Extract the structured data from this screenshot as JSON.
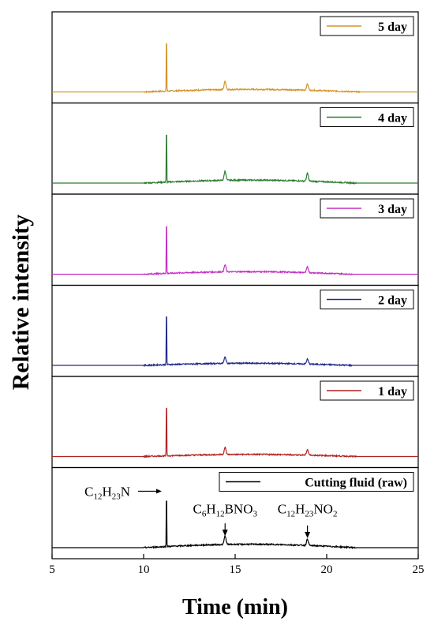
{
  "chart_data": {
    "type": "line",
    "xlabel": "Time (min)",
    "ylabel": "Relative intensity",
    "xlim": [
      5,
      25
    ],
    "x_ticks": [
      5,
      10,
      15,
      20,
      25
    ],
    "grid": false,
    "legend_placement": "top-right in each panel",
    "peaks_x": [
      11.25,
      14.45,
      18.95
    ],
    "series": [
      {
        "name": "5 day",
        "color": "#d4932a",
        "baseline_start": 10.0,
        "baseline_end": 21.8,
        "hump_height": 0.06,
        "peaks": [
          {
            "x": 11.25,
            "height": 0.95
          },
          {
            "x": 14.45,
            "height": 0.12
          },
          {
            "x": 18.95,
            "height": 0.09
          }
        ]
      },
      {
        "name": "4 day",
        "color": "#2e7d32",
        "baseline_start": 10.0,
        "baseline_end": 21.6,
        "hump_height": 0.07,
        "peaks": [
          {
            "x": 11.25,
            "height": 0.93
          },
          {
            "x": 14.45,
            "height": 0.13
          },
          {
            "x": 18.95,
            "height": 0.11
          }
        ]
      },
      {
        "name": "3 day",
        "color": "#c42fc4",
        "baseline_start": 10.0,
        "baseline_end": 21.4,
        "hump_height": 0.06,
        "peaks": [
          {
            "x": 11.25,
            "height": 0.93
          },
          {
            "x": 14.45,
            "height": 0.1
          },
          {
            "x": 18.95,
            "height": 0.08
          }
        ]
      },
      {
        "name": "2 day",
        "color": "#1f2a8a",
        "baseline_start": 10.0,
        "baseline_end": 21.4,
        "hump_height": 0.05,
        "peaks": [
          {
            "x": 11.25,
            "height": 0.95
          },
          {
            "x": 14.45,
            "height": 0.09
          },
          {
            "x": 18.95,
            "height": 0.07
          }
        ]
      },
      {
        "name": "1 day",
        "color": "#b22222",
        "baseline_start": 10.0,
        "baseline_end": 21.6,
        "hump_height": 0.05,
        "peaks": [
          {
            "x": 11.25,
            "height": 0.95
          },
          {
            "x": 14.45,
            "height": 0.1
          },
          {
            "x": 18.95,
            "height": 0.08
          }
        ]
      },
      {
        "name": "Cutting fluid (raw)",
        "color": "#000000",
        "baseline_start": 10.0,
        "baseline_end": 21.6,
        "hump_height": 0.08,
        "peaks": [
          {
            "x": 11.25,
            "height": 0.92
          },
          {
            "x": 14.45,
            "height": 0.12
          },
          {
            "x": 18.95,
            "height": 0.09
          }
        ]
      }
    ],
    "annotations": [
      {
        "label": "C12H23N",
        "parts": [
          [
            "C",
            ""
          ],
          [
            "12",
            "sub"
          ],
          [
            "H",
            ""
          ],
          [
            "23",
            "sub"
          ],
          [
            "N",
            ""
          ]
        ],
        "arrow": "right",
        "peak_x": 11.25
      },
      {
        "label": "C6H12BNO3",
        "parts": [
          [
            "C",
            ""
          ],
          [
            "6",
            "sub"
          ],
          [
            "H",
            ""
          ],
          [
            "12",
            "sub"
          ],
          [
            "BNO",
            ""
          ],
          [
            "3",
            "sub"
          ]
        ],
        "arrow": "down",
        "peak_x": 14.45
      },
      {
        "label": "C12H23NO2",
        "parts": [
          [
            "C",
            ""
          ],
          [
            "12",
            "sub"
          ],
          [
            "H",
            ""
          ],
          [
            "23",
            "sub"
          ],
          [
            "NO",
            ""
          ],
          [
            "2",
            "sub"
          ]
        ],
        "arrow": "down",
        "peak_x": 18.95
      }
    ]
  }
}
